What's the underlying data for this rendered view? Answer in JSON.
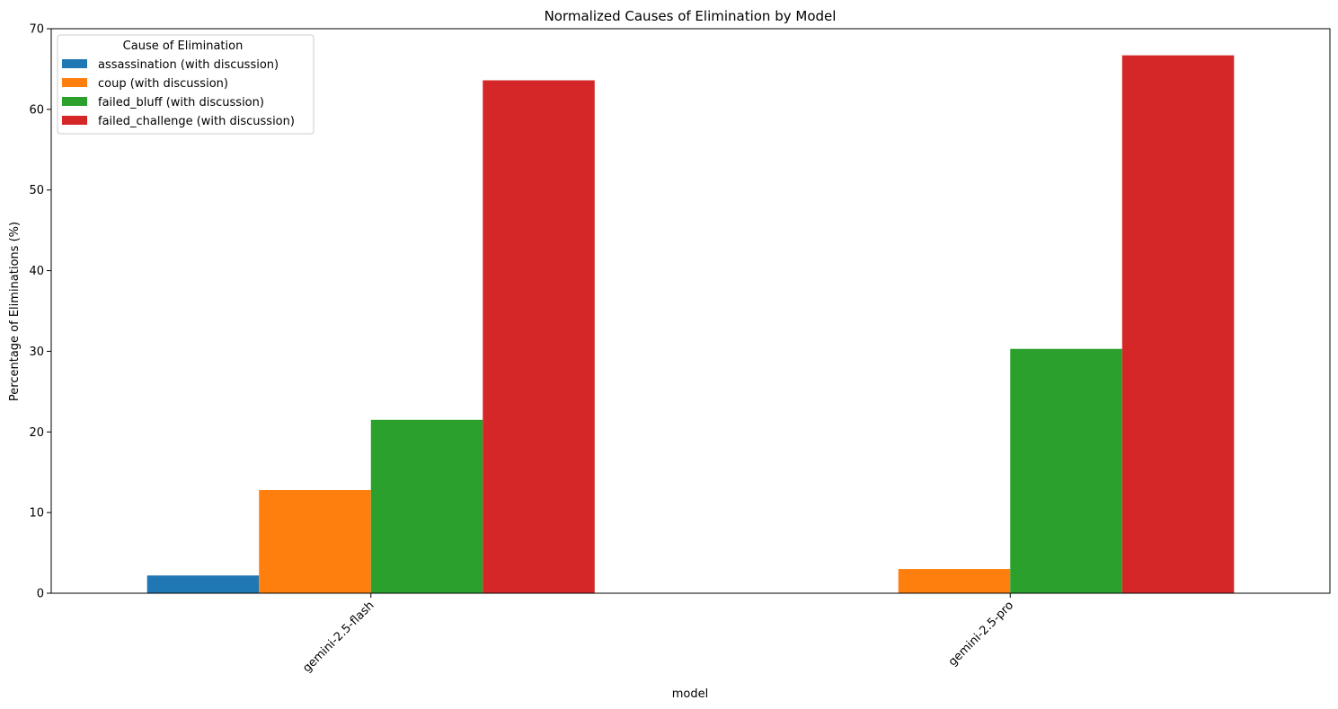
{
  "chart_data": {
    "type": "bar",
    "title": "Normalized Causes of Elimination by Model",
    "xlabel": "model",
    "ylabel": "Percentage of Eliminations (%)",
    "categories": [
      "gemini-2.5-flash",
      "gemini-2.5-pro"
    ],
    "ylim": [
      0,
      70
    ],
    "yticks": [
      0,
      10,
      20,
      30,
      40,
      50,
      60,
      70
    ],
    "grid": false,
    "legend": {
      "title": "Cause of Elimination",
      "placement": "top-left"
    },
    "series": [
      {
        "name": "assassination (with discussion)",
        "color": "#1f77b4",
        "values": [
          2.2,
          0.0
        ]
      },
      {
        "name": "coup (with discussion)",
        "color": "#ff7f0e",
        "values": [
          12.8,
          3.0
        ]
      },
      {
        "name": "failed_bluff (with discussion)",
        "color": "#2ca02c",
        "values": [
          21.5,
          30.3
        ]
      },
      {
        "name": "failed_challenge (with discussion)",
        "color": "#d62728",
        "values": [
          63.6,
          66.7
        ]
      }
    ]
  }
}
